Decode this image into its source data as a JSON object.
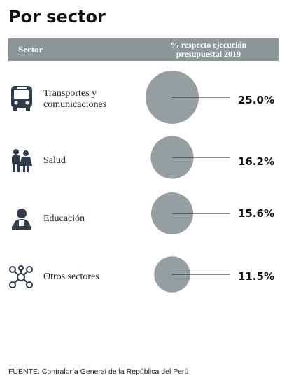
{
  "title": "Por sector",
  "header": {
    "col1": "Sector",
    "col2_line1": "% respecto ejecución",
    "col2_line2": "presupuestal 2019"
  },
  "colors": {
    "header_bg": "#8d979a",
    "circle": "#959ea1",
    "icon": "#2f3d4e",
    "text": "#1a1a1a"
  },
  "chart_data": {
    "type": "bubble",
    "unit": "%",
    "categories": [
      "Transportes y comunicaciones",
      "Salud",
      "Educación",
      "Otros sectores"
    ],
    "values": [
      25.0,
      16.2,
      15.6,
      11.5
    ],
    "labels": [
      "25.0%",
      "16.2%",
      "15.6%",
      "11.5%"
    ],
    "icons": [
      "bus-icon",
      "family-icon",
      "teacher-icon",
      "network-icon"
    ]
  },
  "rows": [
    {
      "label_line1": "Transportes y",
      "label_line2": "comunicaciones",
      "pct": "25.0%"
    },
    {
      "label_line1": "Salud",
      "label_line2": "",
      "pct": "16.2%"
    },
    {
      "label_line1": "Educación",
      "label_line2": "",
      "pct": "15.6%"
    },
    {
      "label_line1": "Otros sectores",
      "label_line2": "",
      "pct": "11.5%"
    }
  ],
  "source": "FUENTE: Contraloría General de la República del Perú"
}
